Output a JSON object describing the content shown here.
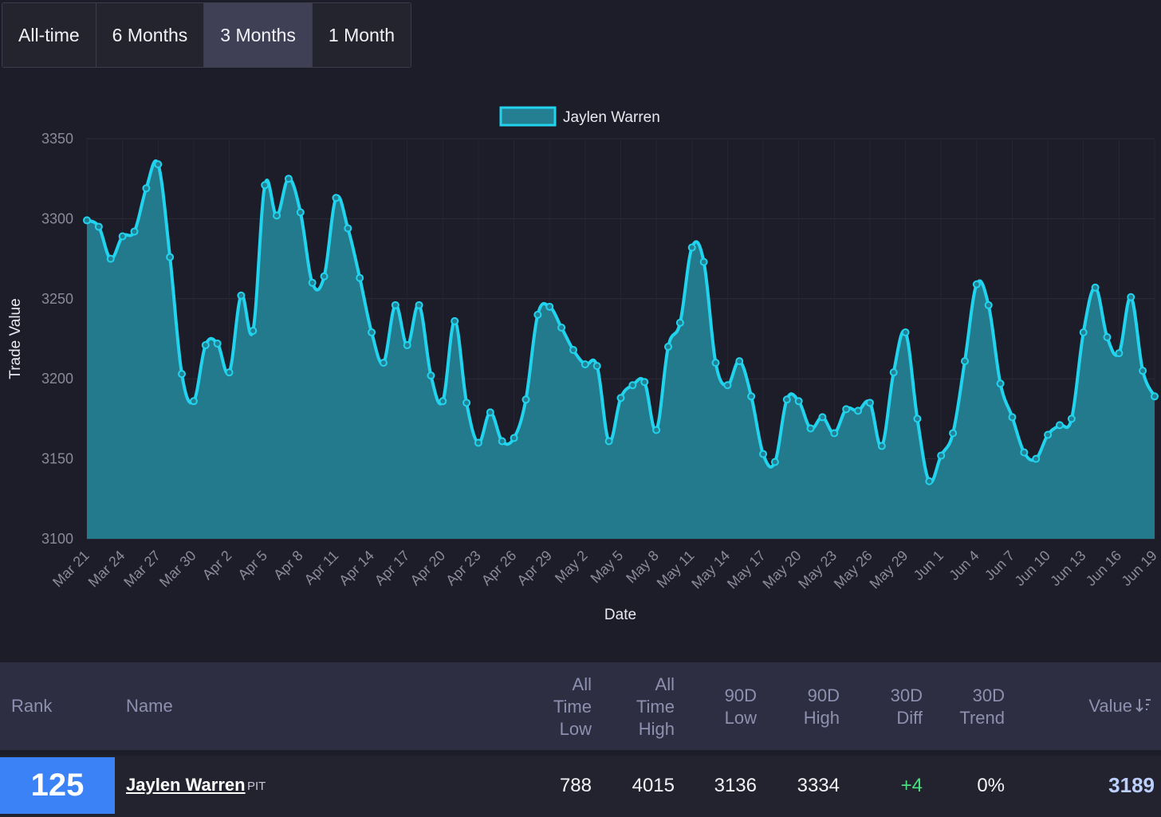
{
  "tabs": [
    {
      "label": "All-time",
      "active": false
    },
    {
      "label": "6 Months",
      "active": false
    },
    {
      "label": "3 Months",
      "active": true
    },
    {
      "label": "1 Month",
      "active": false
    }
  ],
  "chart_data": {
    "type": "area",
    "xlabel": "Date",
    "ylabel": "Trade Value",
    "ylim": [
      3100,
      3350
    ],
    "yticks": [
      3100,
      3150,
      3200,
      3250,
      3300,
      3350
    ],
    "x_tick_labels": [
      "Mar 21",
      "Mar 24",
      "Mar 27",
      "Mar 30",
      "Apr 2",
      "Apr 5",
      "Apr 8",
      "Apr 11",
      "Apr 14",
      "Apr 17",
      "Apr 20",
      "Apr 23",
      "Apr 26",
      "Apr 29",
      "May 2",
      "May 5",
      "May 8",
      "May 11",
      "May 14",
      "May 17",
      "May 20",
      "May 23",
      "May 26",
      "May 29",
      "Jun 1",
      "Jun 4",
      "Jun 7",
      "Jun 10",
      "Jun 13",
      "Jun 16",
      "Jun 19"
    ],
    "grid": true,
    "legend_position": "top-center",
    "colors": {
      "line": "#22d3ee",
      "fill": "#237f91"
    },
    "series": [
      {
        "name": "Jaylen Warren",
        "values": [
          3299,
          3295,
          3275,
          3289,
          3292,
          3319,
          3334,
          3276,
          3203,
          3186,
          3221,
          3222,
          3204,
          3252,
          3230,
          3321,
          3302,
          3325,
          3304,
          3260,
          3264,
          3313,
          3294,
          3263,
          3229,
          3210,
          3246,
          3221,
          3246,
          3202,
          3186,
          3236,
          3185,
          3160,
          3179,
          3161,
          3163,
          3187,
          3240,
          3245,
          3232,
          3218,
          3209,
          3208,
          3161,
          3188,
          3196,
          3198,
          3168,
          3220,
          3235,
          3282,
          3273,
          3210,
          3196,
          3211,
          3189,
          3153,
          3148,
          3187,
          3186,
          3169,
          3176,
          3166,
          3181,
          3180,
          3185,
          3158,
          3204,
          3229,
          3175,
          3136,
          3152,
          3166,
          3211,
          3259,
          3246,
          3197,
          3176,
          3154,
          3150,
          3165,
          3171,
          3175,
          3229,
          3257,
          3226,
          3216,
          3251,
          3205,
          3189
        ]
      }
    ]
  },
  "table": {
    "headers": {
      "rank": "Rank",
      "name": "Name",
      "atl": [
        "All",
        "Time",
        "Low"
      ],
      "ath": [
        "All",
        "Time",
        "High"
      ],
      "low90": [
        "90D",
        "Low"
      ],
      "high90": [
        "90D",
        "High"
      ],
      "diff30": [
        "30D",
        "Diff"
      ],
      "trend30": [
        "30D",
        "Trend"
      ],
      "value": "Value",
      "sort_icon": "sort-desc-icon"
    },
    "row": {
      "rank": "125",
      "name": "Jaylen Warren",
      "team": "PIT",
      "atl": "788",
      "ath": "4015",
      "low90": "3136",
      "high90": "3334",
      "diff30": "+4",
      "trend30": "0%",
      "value": "3189"
    }
  }
}
